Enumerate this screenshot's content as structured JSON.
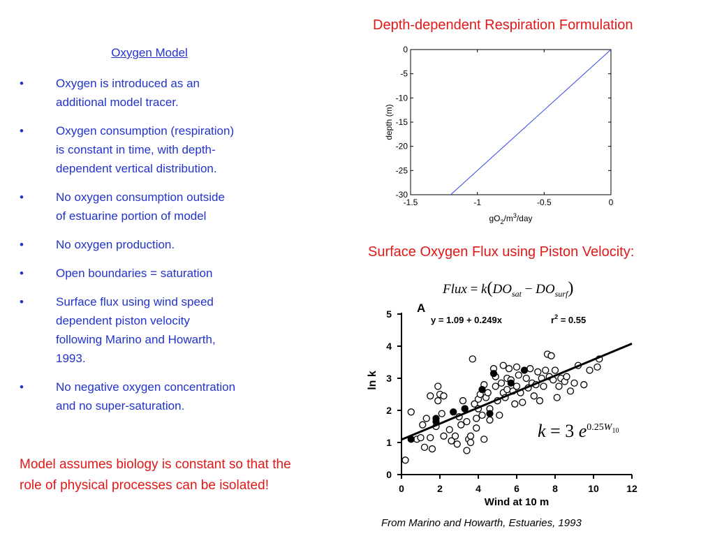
{
  "left": {
    "heading": "Oxygen Model",
    "bullet_symbol": "•",
    "bullets": [
      {
        "l1": "Oxygen is introduced as an",
        "l2": "additional model tracer."
      },
      {
        "l1": "Oxygen consumption (respiration)",
        "l2": "is constant in time, with depth-",
        "l3": "dependent vertical distribution."
      },
      {
        "l1": "No oxygen consumption outside",
        "l2": "of estuarine portion of model"
      },
      {
        "l1": "No oxygen production."
      },
      {
        "l1": "Open boundaries = saturation"
      },
      {
        "l1": "Surface flux using wind speed",
        "l2": "dependent piston velocity",
        "l3": "following Marino and Howarth,",
        "l4": "1993."
      },
      {
        "l1": "No negative oxygen concentration",
        "l2": "and no super-saturation."
      }
    ],
    "conclusion_l1": "Model assumes biology is constant so that the",
    "conclusion_l2": "role of physical processes can be isolated!"
  },
  "right": {
    "depth_title": "Depth-dependent Respiration Formulation",
    "flux_title": "Surface Oxygen Flux using Piston Velocity:",
    "flux_formula": {
      "lhs": "Flux",
      "eq": " = ",
      "k": "k",
      "open": "(",
      "do1": "DO",
      "sub1": "sat",
      "minus": " − ",
      "do2": "DO",
      "sub2": "surf",
      "close": ")"
    },
    "k_formula": {
      "k": "k",
      "eq": " = 3 ",
      "e": "e",
      "exp": "0.25",
      "w": "W",
      "wsub": "10"
    },
    "citation": "From Marino and Howarth, Estuaries, 1993"
  },
  "chart_data": [
    {
      "type": "line",
      "title": "",
      "xlabel": "gO2/m3/day",
      "ylabel": "depth (m)",
      "xlim": [
        -1.5,
        0
      ],
      "ylim": [
        -30,
        0
      ],
      "x_ticks": [
        "-1.5",
        "-1",
        "-0.5",
        "0"
      ],
      "y_ticks": [
        "0",
        "-5",
        "-10",
        "-15",
        "-20",
        "-25",
        "-30"
      ],
      "grid": false,
      "colors": {
        "line": "#3344ee"
      },
      "series": [
        {
          "x": [
            -1.2,
            0
          ],
          "y": [
            -30,
            0
          ]
        }
      ]
    },
    {
      "type": "scatter",
      "panel_label": "A",
      "equation_text": "y = 1.09 + 0.249x",
      "r2_label": "r",
      "r2_exp": "2",
      "r2_value": " = 0.55",
      "xlabel": "Wind at 10 m",
      "ylabel": "ln k",
      "xlim": [
        0,
        12
      ],
      "ylim": [
        0,
        5
      ],
      "x_ticks": [
        "0",
        "2",
        "4",
        "6",
        "8",
        "10",
        "12"
      ],
      "y_ticks": [
        "0",
        "1",
        "2",
        "3",
        "4",
        "5"
      ],
      "regression": {
        "intercept": 1.09,
        "slope": 0.249,
        "x_range": [
          0,
          12
        ]
      },
      "open_points": [
        [
          0.2,
          0.45
        ],
        [
          0.5,
          1.95
        ],
        [
          0.8,
          1.1
        ],
        [
          1.0,
          1.15
        ],
        [
          1.1,
          1.55
        ],
        [
          1.2,
          0.85
        ],
        [
          1.3,
          1.75
        ],
        [
          1.5,
          2.45
        ],
        [
          1.5,
          1.15
        ],
        [
          1.6,
          0.8
        ],
        [
          1.8,
          1.5
        ],
        [
          1.9,
          2.3
        ],
        [
          1.9,
          2.75
        ],
        [
          2.0,
          2.5
        ],
        [
          2.1,
          1.9
        ],
        [
          2.2,
          2.45
        ],
        [
          2.2,
          1.2
        ],
        [
          2.5,
          1.4
        ],
        [
          2.6,
          1.05
        ],
        [
          2.8,
          1.2
        ],
        [
          2.9,
          0.95
        ],
        [
          3.0,
          1.8
        ],
        [
          3.1,
          1.55
        ],
        [
          3.2,
          2.3
        ],
        [
          3.3,
          2.05
        ],
        [
          3.4,
          1.65
        ],
        [
          3.4,
          0.75
        ],
        [
          3.5,
          1.1
        ],
        [
          3.6,
          1.2
        ],
        [
          3.6,
          1.0
        ],
        [
          3.7,
          3.6
        ],
        [
          3.8,
          2.2
        ],
        [
          3.9,
          1.75
        ],
        [
          3.9,
          1.45
        ],
        [
          4.0,
          2.35
        ],
        [
          4.0,
          2.05
        ],
        [
          4.1,
          2.5
        ],
        [
          4.2,
          1.85
        ],
        [
          4.3,
          2.8
        ],
        [
          4.3,
          1.1
        ],
        [
          4.4,
          2.4
        ],
        [
          4.5,
          2.55
        ],
        [
          4.6,
          2.05
        ],
        [
          4.6,
          1.7
        ],
        [
          4.8,
          3.3
        ],
        [
          4.9,
          3.05
        ],
        [
          4.9,
          2.75
        ],
        [
          5.0,
          2.3
        ],
        [
          5.1,
          1.85
        ],
        [
          5.2,
          2.85
        ],
        [
          5.3,
          3.4
        ],
        [
          5.3,
          2.55
        ],
        [
          5.4,
          2.4
        ],
        [
          5.5,
          3.0
        ],
        [
          5.5,
          2.65
        ],
        [
          5.6,
          3.3
        ],
        [
          5.7,
          2.95
        ],
        [
          5.8,
          2.6
        ],
        [
          5.9,
          2.2
        ],
        [
          6.0,
          3.35
        ],
        [
          6.0,
          2.75
        ],
        [
          6.1,
          3.1
        ],
        [
          6.2,
          2.55
        ],
        [
          6.3,
          2.25
        ],
        [
          6.5,
          3.0
        ],
        [
          6.6,
          2.7
        ],
        [
          6.7,
          3.3
        ],
        [
          6.8,
          2.85
        ],
        [
          6.9,
          2.45
        ],
        [
          7.0,
          2.8
        ],
        [
          7.1,
          3.2
        ],
        [
          7.2,
          2.3
        ],
        [
          7.3,
          3.0
        ],
        [
          7.4,
          2.75
        ],
        [
          7.5,
          3.25
        ],
        [
          7.6,
          3.75
        ],
        [
          7.7,
          3.05
        ],
        [
          7.8,
          3.7
        ],
        [
          7.9,
          2.95
        ],
        [
          8.0,
          3.25
        ],
        [
          8.1,
          2.4
        ],
        [
          8.2,
          2.75
        ],
        [
          8.3,
          3.0
        ],
        [
          8.5,
          2.9
        ],
        [
          8.6,
          3.05
        ],
        [
          8.8,
          2.6
        ],
        [
          9.0,
          2.85
        ],
        [
          9.2,
          3.4
        ],
        [
          9.5,
          2.8
        ],
        [
          9.8,
          3.25
        ],
        [
          10.2,
          3.35
        ],
        [
          10.3,
          3.6
        ]
      ],
      "filled_points": [
        [
          0.5,
          1.1
        ],
        [
          1.8,
          1.65
        ],
        [
          1.8,
          1.75
        ],
        [
          2.7,
          1.95
        ],
        [
          3.3,
          2.05
        ],
        [
          4.2,
          2.65
        ],
        [
          4.6,
          1.9
        ],
        [
          4.8,
          3.15
        ],
        [
          5.7,
          2.85
        ],
        [
          6.4,
          3.25
        ]
      ]
    }
  ]
}
